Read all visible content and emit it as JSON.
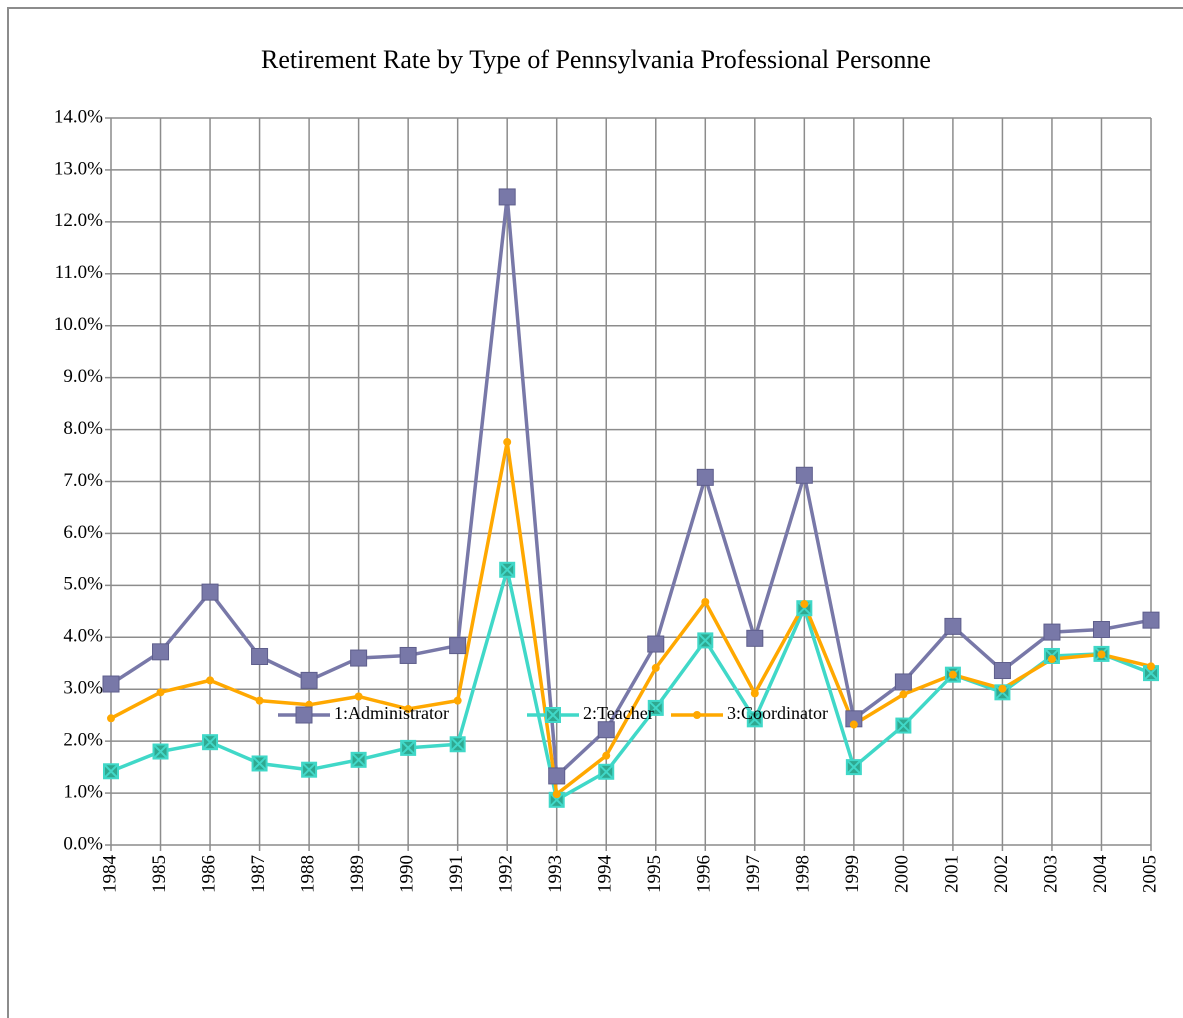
{
  "chart_data": {
    "type": "line",
    "title": "Retirement Rate by Type of  Pennsylvania Professional Personne",
    "categories": [
      "1984",
      "1985",
      "1986",
      "1987",
      "1988",
      "1989",
      "1990",
      "1991",
      "1992",
      "1993",
      "1994",
      "1995",
      "1996",
      "1997",
      "1998",
      "1999",
      "2000",
      "2001",
      "2002",
      "2003",
      "2004",
      "2005"
    ],
    "series": [
      {
        "name": "1:Administrator",
        "color": "#7878a8",
        "marker": "square",
        "values": [
          3.1,
          3.72,
          4.87,
          3.63,
          3.17,
          3.6,
          3.65,
          3.84,
          12.48,
          1.33,
          2.22,
          3.87,
          7.08,
          3.98,
          7.12,
          2.43,
          3.14,
          4.21,
          3.36,
          4.1,
          4.15,
          4.33
        ]
      },
      {
        "name": "2:Teacher",
        "color": "#40d8c8",
        "marker": "x-square",
        "values": [
          1.42,
          1.8,
          1.98,
          1.57,
          1.45,
          1.64,
          1.87,
          1.94,
          5.3,
          0.87,
          1.41,
          2.64,
          3.94,
          2.42,
          4.56,
          1.5,
          2.3,
          3.28,
          2.94,
          3.64,
          3.68,
          3.31
        ]
      },
      {
        "name": "3:Coordinator",
        "color": "#ffa800",
        "marker": "circle",
        "values": [
          2.44,
          2.94,
          3.17,
          2.78,
          2.7,
          2.86,
          2.62,
          2.78,
          7.76,
          0.98,
          1.72,
          3.41,
          4.68,
          2.92,
          4.64,
          2.32,
          2.9,
          3.28,
          3.01,
          3.58,
          3.67,
          3.44
        ]
      }
    ],
    "ylim": [
      0,
      14
    ],
    "yticks": [
      {
        "value": 0,
        "label": "0.0%"
      },
      {
        "value": 1,
        "label": "1.0%"
      },
      {
        "value": 2,
        "label": "2.0%"
      },
      {
        "value": 3,
        "label": "3.0%"
      },
      {
        "value": 4,
        "label": "4.0%"
      },
      {
        "value": 5,
        "label": "5.0%"
      },
      {
        "value": 6,
        "label": "6.0%"
      },
      {
        "value": 7,
        "label": "7.0%"
      },
      {
        "value": 8,
        "label": "8.0%"
      },
      {
        "value": 9,
        "label": "9.0%"
      },
      {
        "value": 10,
        "label": "10.0%"
      },
      {
        "value": 11,
        "label": "11.0%"
      },
      {
        "value": 12,
        "label": "12.0%"
      },
      {
        "value": 13,
        "label": "13.0%"
      },
      {
        "value": 14,
        "label": "14.0%"
      }
    ],
    "grid": true,
    "legend": "bottom"
  }
}
